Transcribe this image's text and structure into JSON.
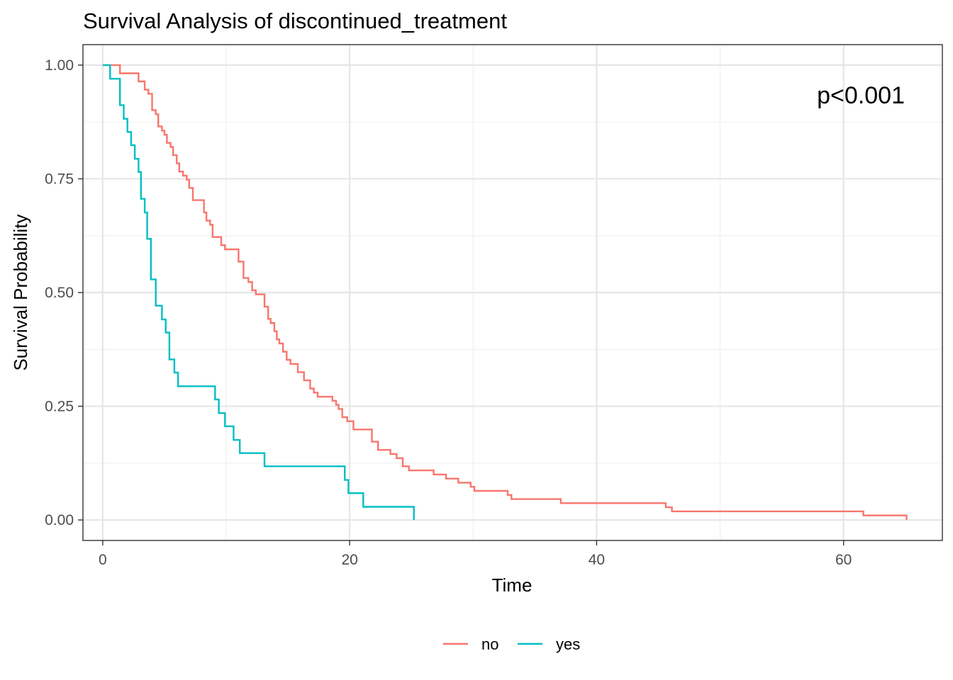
{
  "chart_data": {
    "type": "line",
    "step": true,
    "title": "Survival Analysis of discontinued_treatment",
    "xlabel": "Time",
    "ylabel": "Survival Probability",
    "xlim": [
      -1.6,
      68.0
    ],
    "ylim": [
      -0.045,
      1.045
    ],
    "x_ticks": [
      0,
      20,
      40,
      60
    ],
    "y_ticks": [
      0.0,
      0.25,
      0.5,
      0.75,
      1.0
    ],
    "x_tick_labels": [
      "0",
      "20",
      "40",
      "60"
    ],
    "y_tick_labels": [
      "0.00",
      "0.25",
      "0.50",
      "0.75",
      "1.00"
    ],
    "grid": true,
    "legend_position": "bottom",
    "annotation": "p<0.001",
    "series": [
      {
        "name": "no",
        "color": "#F8766D",
        "points": [
          [
            0,
            1.0
          ],
          [
            1.4,
            0.982
          ],
          [
            2.9,
            0.964
          ],
          [
            3.4,
            0.946
          ],
          [
            3.7,
            0.937
          ],
          [
            4.0,
            0.901
          ],
          [
            4.3,
            0.892
          ],
          [
            4.5,
            0.865
          ],
          [
            4.8,
            0.856
          ],
          [
            5.0,
            0.847
          ],
          [
            5.2,
            0.829
          ],
          [
            5.5,
            0.82
          ],
          [
            5.7,
            0.802
          ],
          [
            6.0,
            0.784
          ],
          [
            6.2,
            0.766
          ],
          [
            6.5,
            0.757
          ],
          [
            6.8,
            0.748
          ],
          [
            7.0,
            0.73
          ],
          [
            7.3,
            0.703
          ],
          [
            8.2,
            0.676
          ],
          [
            8.4,
            0.658
          ],
          [
            8.7,
            0.649
          ],
          [
            8.9,
            0.622
          ],
          [
            9.6,
            0.604
          ],
          [
            9.9,
            0.595
          ],
          [
            11.0,
            0.568
          ],
          [
            11.4,
            0.532
          ],
          [
            11.8,
            0.523
          ],
          [
            12.1,
            0.505
          ],
          [
            12.4,
            0.496
          ],
          [
            13.1,
            0.469
          ],
          [
            13.4,
            0.442
          ],
          [
            13.6,
            0.433
          ],
          [
            13.9,
            0.415
          ],
          [
            14.1,
            0.397
          ],
          [
            14.3,
            0.388
          ],
          [
            14.6,
            0.37
          ],
          [
            14.9,
            0.352
          ],
          [
            15.2,
            0.343
          ],
          [
            15.8,
            0.325
          ],
          [
            16.3,
            0.307
          ],
          [
            16.8,
            0.289
          ],
          [
            17.1,
            0.28
          ],
          [
            17.4,
            0.271
          ],
          [
            18.6,
            0.262
          ],
          [
            18.9,
            0.253
          ],
          [
            19.1,
            0.244
          ],
          [
            19.4,
            0.226
          ],
          [
            19.8,
            0.217
          ],
          [
            20.3,
            0.199
          ],
          [
            21.8,
            0.172
          ],
          [
            22.3,
            0.154
          ],
          [
            23.3,
            0.145
          ],
          [
            23.8,
            0.136
          ],
          [
            24.3,
            0.118
          ],
          [
            24.8,
            0.109
          ],
          [
            26.8,
            0.1
          ],
          [
            27.8,
            0.091
          ],
          [
            28.8,
            0.082
          ],
          [
            29.8,
            0.073
          ],
          [
            30.1,
            0.064
          ],
          [
            32.8,
            0.055
          ],
          [
            33.1,
            0.046
          ],
          [
            37.1,
            0.037
          ],
          [
            45.6,
            0.028
          ],
          [
            46.1,
            0.019
          ],
          [
            61.6,
            0.01
          ],
          [
            65.1,
            0.0
          ]
        ]
      },
      {
        "name": "yes",
        "color": "#00BFC4",
        "points": [
          [
            0,
            1.0
          ],
          [
            0.6,
            0.97
          ],
          [
            1.4,
            0.912
          ],
          [
            1.7,
            0.882
          ],
          [
            2.0,
            0.853
          ],
          [
            2.3,
            0.824
          ],
          [
            2.6,
            0.794
          ],
          [
            2.9,
            0.765
          ],
          [
            3.1,
            0.706
          ],
          [
            3.4,
            0.676
          ],
          [
            3.6,
            0.618
          ],
          [
            3.9,
            0.529
          ],
          [
            4.3,
            0.471
          ],
          [
            4.8,
            0.441
          ],
          [
            5.1,
            0.412
          ],
          [
            5.4,
            0.353
          ],
          [
            5.8,
            0.324
          ],
          [
            6.1,
            0.294
          ],
          [
            9.1,
            0.265
          ],
          [
            9.4,
            0.235
          ],
          [
            9.9,
            0.206
          ],
          [
            10.6,
            0.176
          ],
          [
            11.1,
            0.147
          ],
          [
            13.1,
            0.118
          ],
          [
            19.6,
            0.088
          ],
          [
            19.9,
            0.059
          ],
          [
            21.1,
            0.029
          ],
          [
            25.2,
            0.0
          ]
        ]
      }
    ]
  }
}
